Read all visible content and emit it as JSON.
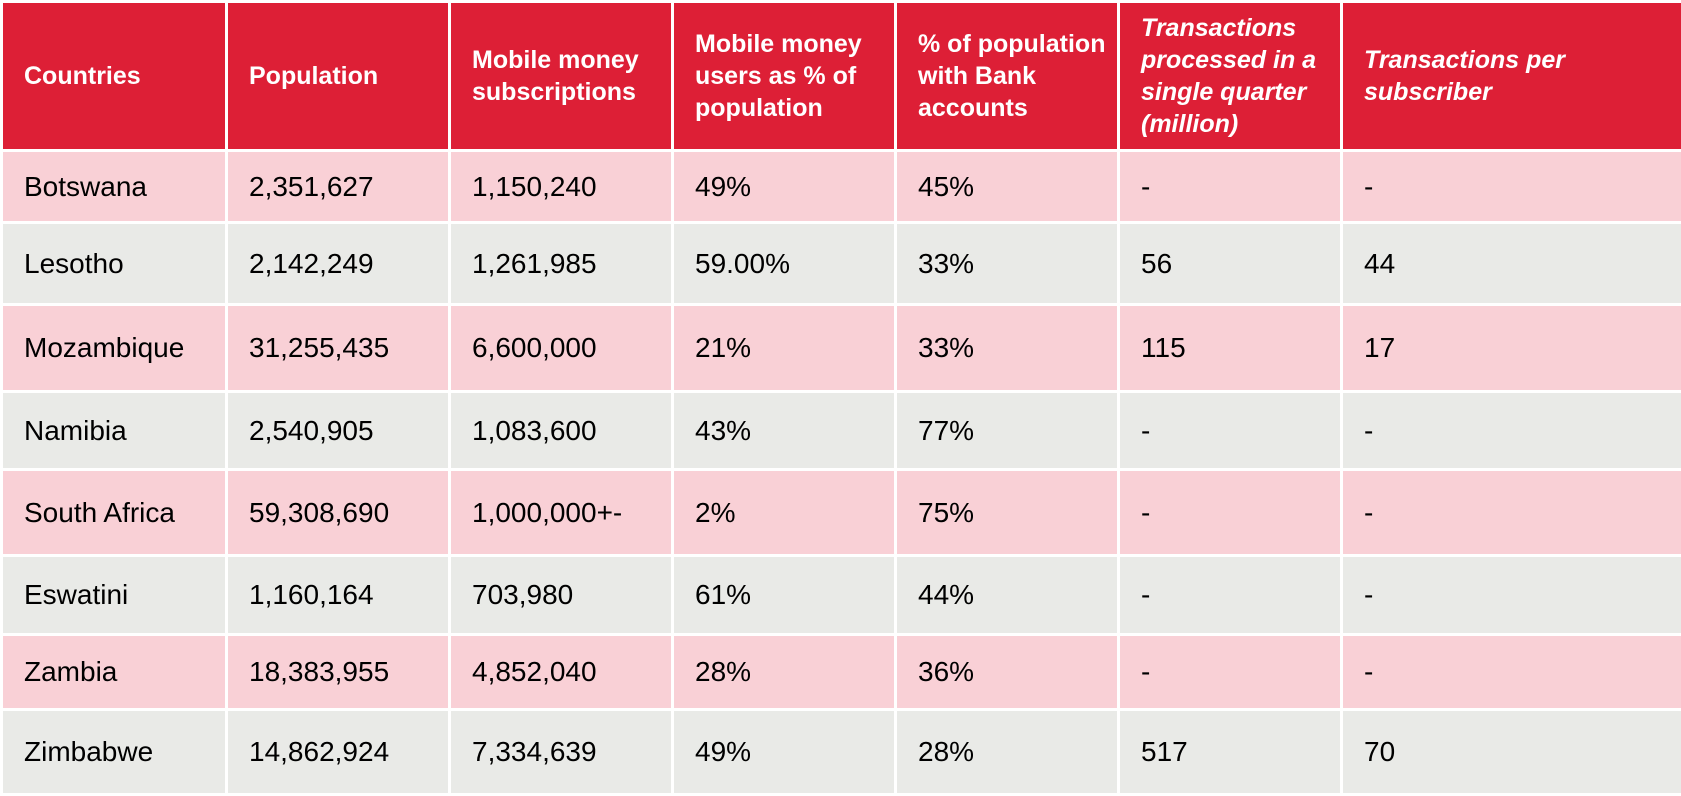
{
  "chart_data": {
    "type": "table",
    "header_color": "#dd1f36",
    "row_colors": [
      "#f9d0d6",
      "#e9eae7"
    ],
    "columns": [
      "Countries",
      "Population",
      "Mobile money subscriptions",
      "Mobile money users as % of population",
      "% of population with Bank accounts",
      "Transactions processed in a single quarter (million)",
      "Transactions per subscriber"
    ],
    "italic_columns": [
      5,
      6
    ],
    "rows": [
      [
        "Botswana",
        "2,351,627",
        "1,150,240",
        "49%",
        "45%",
        "-",
        "-"
      ],
      [
        "Lesotho",
        "2,142,249",
        "1,261,985",
        "59.00%",
        "33%",
        "56",
        "44"
      ],
      [
        "Mozambique",
        "31,255,435",
        "6,600,000",
        "21%",
        "33%",
        "115",
        "17"
      ],
      [
        "Namibia",
        "2,540,905",
        "1,083,600",
        "43%",
        "77%",
        "-",
        "-"
      ],
      [
        "South Africa",
        "59,308,690",
        "1,000,000+-",
        "2%",
        "75%",
        "-",
        "-"
      ],
      [
        "Eswatini",
        "1,160,164",
        "703,980",
        "61%",
        "44%",
        "-",
        "-"
      ],
      [
        "Zambia",
        "18,383,955",
        "4,852,040",
        "28%",
        "36%",
        "-",
        "-"
      ],
      [
        "Zimbabwe",
        "14,862,924",
        "7,334,639",
        "49%",
        "28%",
        "517",
        "70"
      ]
    ]
  }
}
